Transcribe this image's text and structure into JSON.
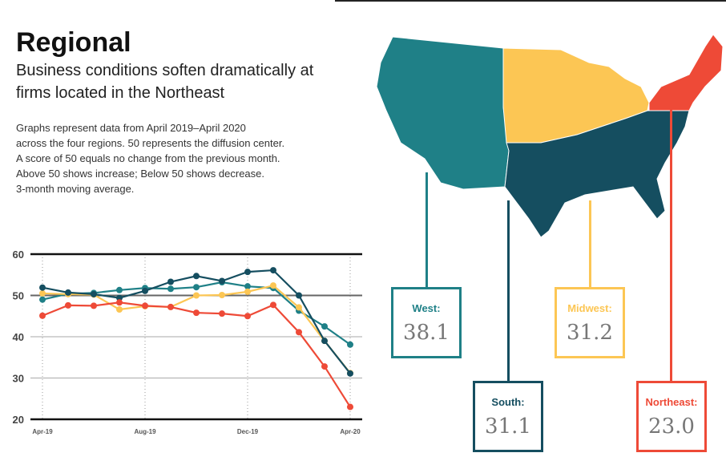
{
  "title": "Regional",
  "subtitle": "Business conditions soften dramatically at firms located in the Northeast",
  "description": [
    "Graphs represent data from April 2019–April 2020",
    "across the four regions. 50 represents the diffusion center.",
    "A score of 50 equals no change from the previous month.",
    "Above 50 shows increase; Below 50 shows decrease.",
    "3-month moving average."
  ],
  "regions": [
    {
      "name": "West:",
      "value": "38.1",
      "color": "#1f8087"
    },
    {
      "name": "South:",
      "value": "31.1",
      "color": "#154e60"
    },
    {
      "name": "Midwest:",
      "value": "31.2",
      "color": "#fcc654"
    },
    {
      "name": "Northeast:",
      "value": "23.0",
      "color": "#ee4a37"
    }
  ],
  "chart_data": {
    "type": "line",
    "x": [
      "Apr-19",
      "May-19",
      "Jun-19",
      "Jul-19",
      "Aug-19",
      "Sep-19",
      "Oct-19",
      "Nov-19",
      "Dec-19",
      "Jan-20",
      "Feb-20",
      "Mar-20",
      "Apr-20"
    ],
    "xticks": [
      "Apr-19",
      "Aug-19",
      "Dec-19",
      "Apr-20"
    ],
    "yticks": [
      20,
      30,
      40,
      50,
      60
    ],
    "ylim": [
      20,
      60
    ],
    "series": [
      {
        "name": "West",
        "color": "#1f8087",
        "values": [
          49.0,
          50.4,
          50.6,
          51.3,
          51.8,
          51.6,
          52.0,
          53.2,
          52.2,
          51.8,
          46.3,
          42.5,
          38.1
        ]
      },
      {
        "name": "Midwest",
        "color": "#fcc654",
        "values": [
          50.5,
          50.3,
          50.2,
          46.6,
          47.4,
          47.2,
          50.0,
          50.1,
          50.9,
          52.4,
          47.1,
          39.0,
          31.2
        ]
      },
      {
        "name": "South",
        "color": "#154e60",
        "values": [
          51.9,
          50.7,
          50.3,
          49.4,
          51.1,
          53.3,
          54.7,
          53.5,
          55.7,
          56.1,
          50.0,
          39.0,
          31.1
        ]
      },
      {
        "name": "Northeast",
        "color": "#ee4a37",
        "values": [
          45.1,
          47.6,
          47.5,
          48.3,
          47.5,
          47.2,
          45.8,
          45.6,
          45.0,
          47.7,
          41.1,
          32.8,
          23.0
        ]
      }
    ]
  }
}
